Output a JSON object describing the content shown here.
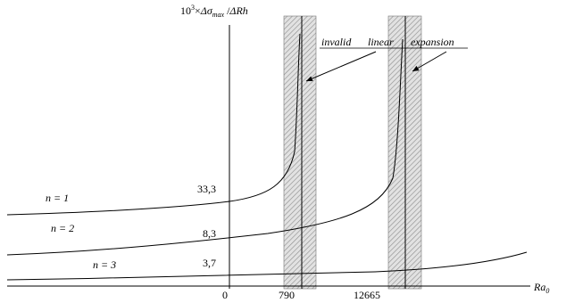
{
  "chart_data": {
    "type": "line",
    "title": "",
    "ylabel": {
      "prefix": "10",
      "exp": "3",
      "times": "×",
      "delta1": "Δ",
      "sigma": "σ",
      "sub": "max",
      "slash": " /",
      "rest": "ΔRh"
    },
    "xlabel": {
      "main": "Ra",
      "sub": "0"
    },
    "x_ticks": [
      "0",
      "790",
      "12665"
    ],
    "series": [
      {
        "name": "n = 1",
        "left_label": "n = 1",
        "value_label": "33,3",
        "asymptote": "790"
      },
      {
        "name": "n = 2",
        "left_label": "n = 2",
        "value_label": "8,3",
        "asymptote": "12665"
      },
      {
        "name": "n = 3",
        "left_label": "n = 3",
        "value_label": "3,7",
        "asymptote": ""
      }
    ],
    "annotations": {
      "word1": "invalid",
      "word2": "linear",
      "word3": "expansion"
    },
    "grid": false,
    "legend": "none",
    "colors": {
      "line": "#000000",
      "hatch": "#9a9a9a",
      "band_fill": "#dcdcdc"
    }
  }
}
